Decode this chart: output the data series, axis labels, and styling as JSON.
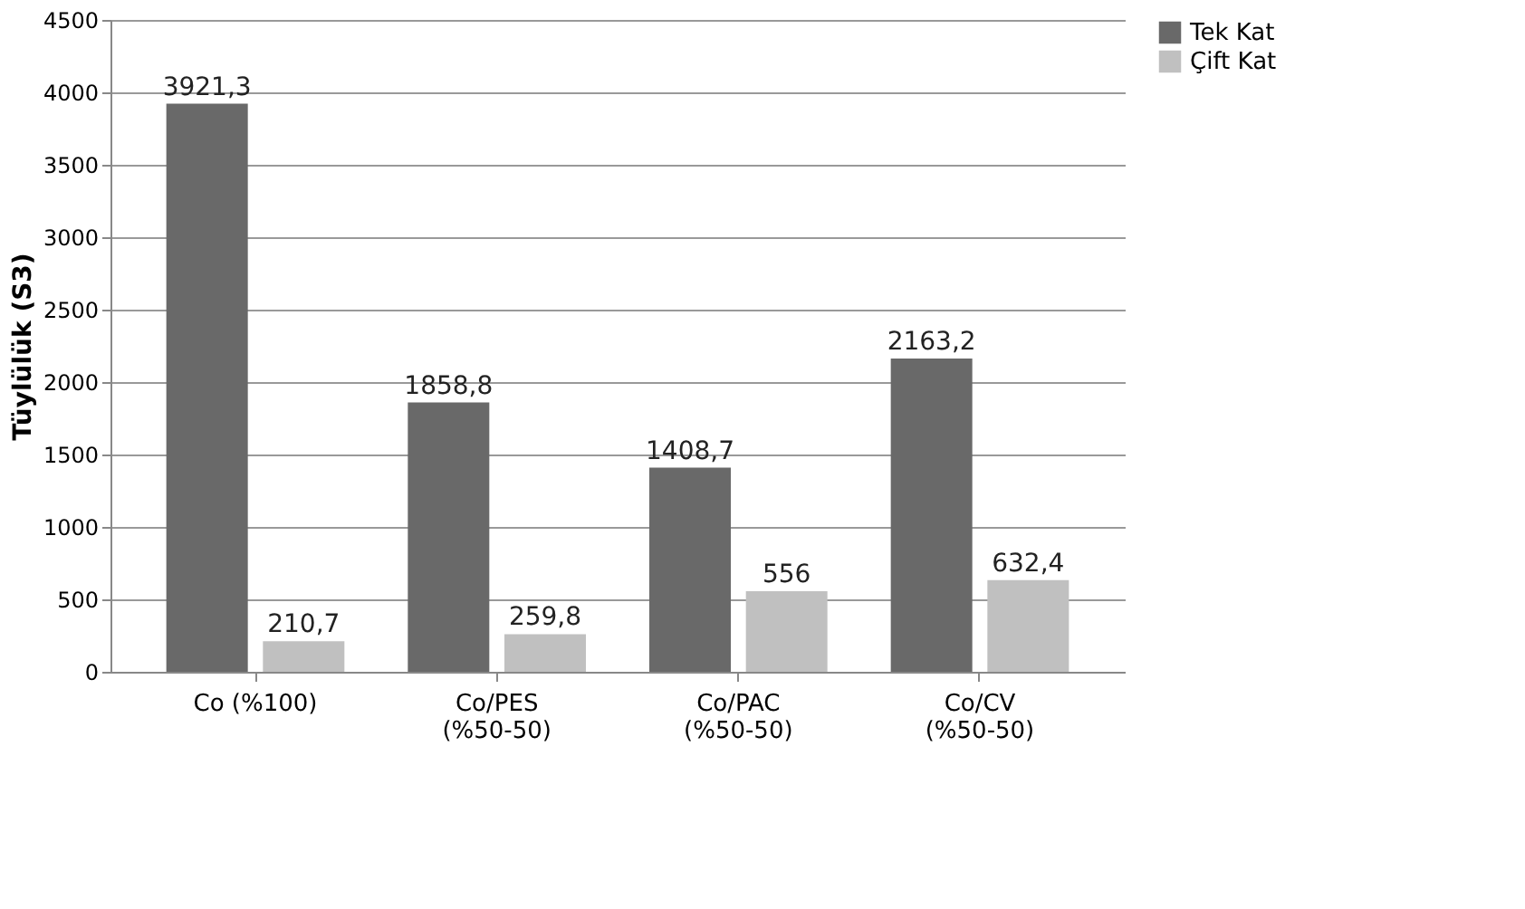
{
  "chart_data": {
    "type": "bar",
    "ylabel": "Tüylülük (S3)",
    "categories": [
      "Co (%100)",
      "Co/PES\n(%50-50)",
      "Co/PAC\n(%50-50)",
      "Co/CV\n(%50-50)"
    ],
    "series": [
      {
        "name": "Tek Kat",
        "color": "#696969",
        "values": [
          3921.3,
          1858.8,
          1408.7,
          2163.2
        ],
        "value_labels": [
          "3921,3",
          "1858,8",
          "1408,7",
          "2163,2"
        ]
      },
      {
        "name": "Çift Kat",
        "color": "#c0c0c0",
        "values": [
          210.7,
          259.8,
          556,
          632.4
        ],
        "value_labels": [
          "210,7",
          "259,8",
          "556",
          "632,4"
        ]
      }
    ],
    "ylim": [
      0,
      4500
    ],
    "yticks": [
      0,
      500,
      1000,
      1500,
      2000,
      2500,
      3000,
      3500,
      4000,
      4500
    ],
    "grid": "y",
    "legend": "right"
  }
}
